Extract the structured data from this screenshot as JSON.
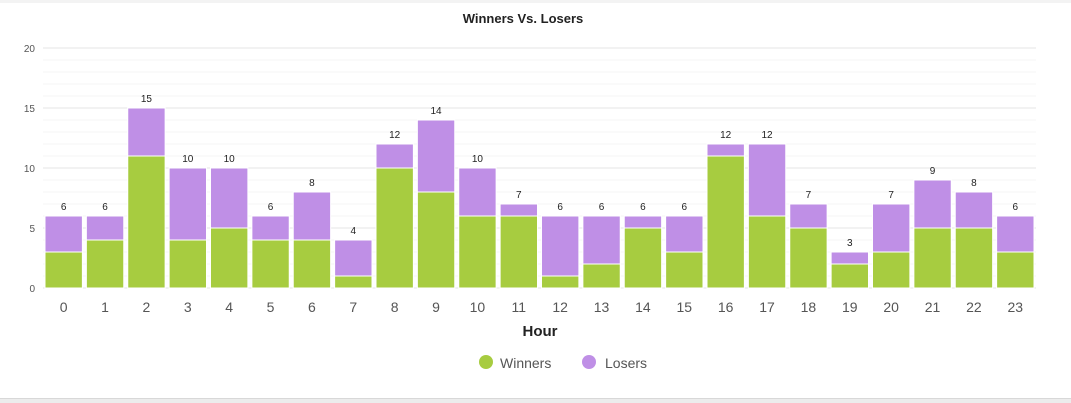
{
  "chart_data": {
    "type": "bar",
    "stacked": true,
    "title": "Winners Vs. Losers",
    "xlabel": "Hour",
    "ylabel": "",
    "ylim": [
      0,
      20
    ],
    "yticks": [
      0,
      5,
      10,
      15,
      20
    ],
    "grid": true,
    "legend_position": "bottom",
    "categories": [
      "0",
      "1",
      "2",
      "3",
      "4",
      "5",
      "6",
      "7",
      "8",
      "9",
      "10",
      "11",
      "12",
      "13",
      "14",
      "15",
      "16",
      "17",
      "18",
      "19",
      "20",
      "21",
      "22",
      "23"
    ],
    "series": [
      {
        "name": "Winners",
        "color": "#a7cc40",
        "values": [
          3,
          4,
          11,
          4,
          5,
          4,
          4,
          1,
          10,
          8,
          6,
          6,
          1,
          2,
          5,
          3,
          11,
          6,
          5,
          2,
          3,
          5,
          5,
          3
        ]
      },
      {
        "name": "Losers",
        "color": "#bf8fe6",
        "values": [
          3,
          2,
          4,
          6,
          5,
          2,
          4,
          3,
          2,
          6,
          4,
          1,
          5,
          4,
          1,
          3,
          1,
          6,
          2,
          1,
          4,
          4,
          3,
          3
        ]
      }
    ],
    "totals": [
      6,
      6,
      15,
      10,
      10,
      6,
      8,
      4,
      12,
      14,
      10,
      7,
      6,
      6,
      6,
      6,
      12,
      12,
      7,
      3,
      7,
      9,
      8,
      6
    ]
  }
}
